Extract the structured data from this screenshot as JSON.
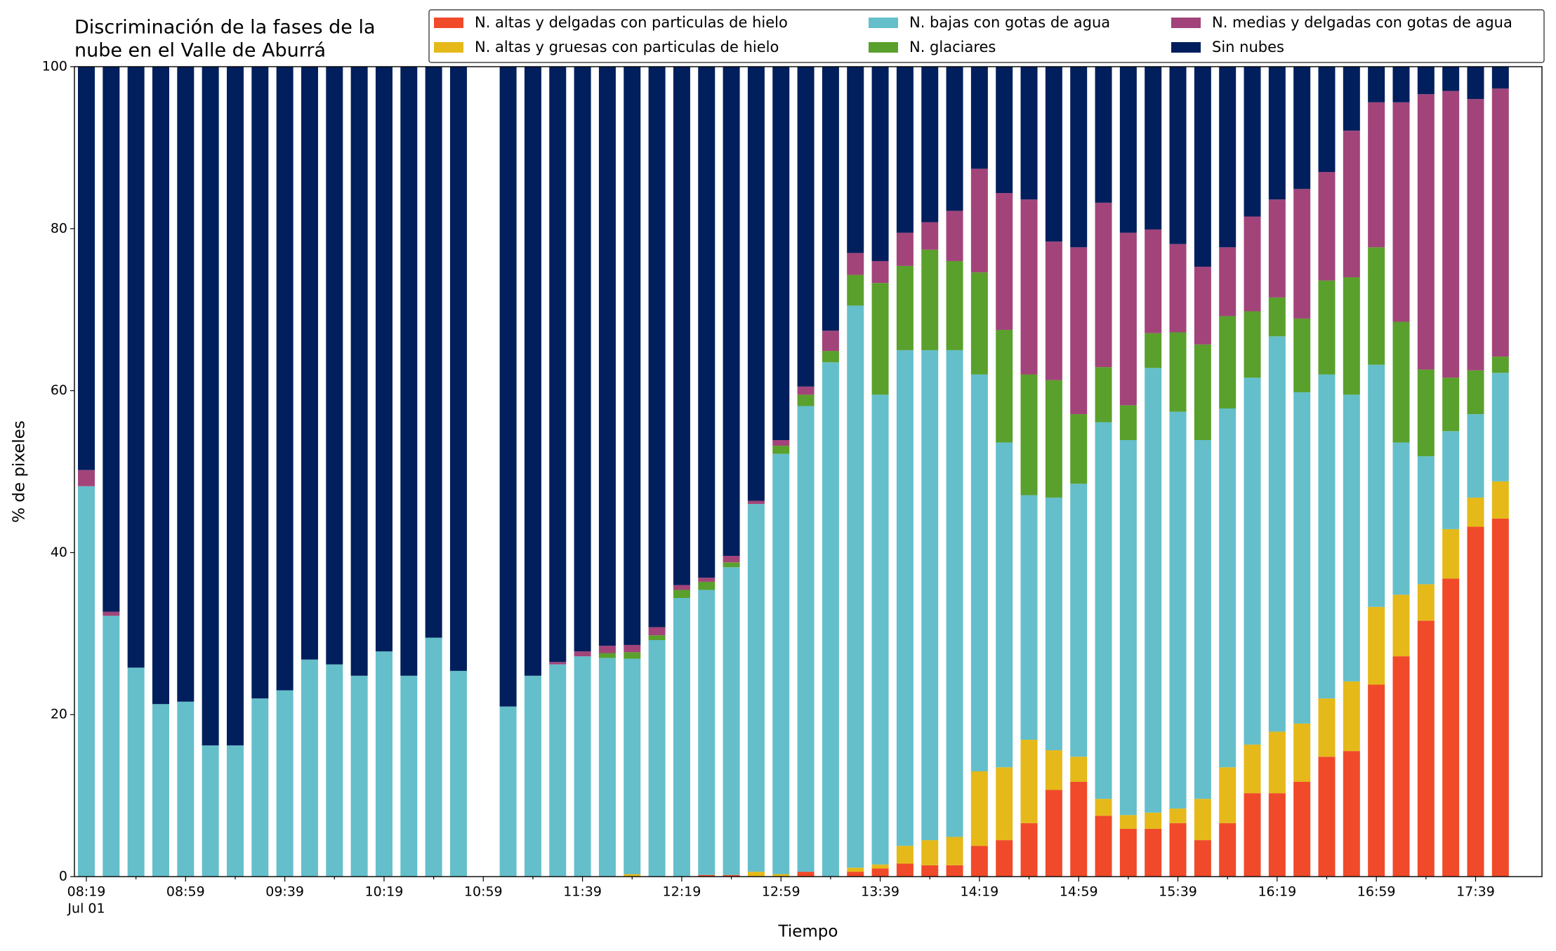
{
  "chart_data": {
    "type": "stacked_bar",
    "title": [
      "Discriminación de la fases de la",
      "nube en el Valle de Aburrá"
    ],
    "xlabel": "Tiempo",
    "ylabel": "% de pixeles",
    "x_sublabel": "Jul 01",
    "categories": [
      "08:19",
      null,
      null,
      null,
      "08:59",
      null,
      null,
      null,
      "09:39",
      null,
      null,
      null,
      "10:19",
      null,
      null,
      null,
      "10:59",
      null,
      null,
      null,
      "11:39",
      null,
      null,
      null,
      "12:19",
      null,
      null,
      null,
      "12:59",
      null,
      null,
      null,
      "13:39",
      null,
      null,
      null,
      "14:19",
      null,
      null,
      null,
      "14:59",
      null,
      null,
      null,
      "15:39",
      null,
      null,
      null,
      "16:19",
      null,
      null,
      null,
      "16:59",
      null,
      null,
      null,
      "17:39",
      null
    ],
    "ylim": [
      0,
      100
    ],
    "yticks": [
      0,
      20,
      40,
      60,
      80,
      100
    ],
    "legend": "top right",
    "series": [
      {
        "name": "N. altas y delgadas con particulas de hielo",
        "color": "#f04a2a",
        "values": [
          0,
          0,
          0,
          0,
          0,
          0,
          0,
          0,
          0,
          0,
          0,
          0,
          0,
          0,
          0,
          0,
          null,
          0,
          0,
          0,
          0,
          0,
          0,
          0,
          0,
          0.2,
          0.2,
          0,
          0,
          0.6,
          0,
          0.6,
          1.0,
          1.6,
          1.4,
          1.4,
          3.8,
          4.5,
          6.6,
          10.7,
          11.7,
          7.5,
          5.9,
          5.9,
          6.6,
          4.5,
          6.6,
          10.3,
          10.3,
          11.7,
          14.8,
          15.5,
          23.7,
          27.2,
          31.6,
          36.8,
          43.2,
          44.2
        ]
      },
      {
        "name": "N. altas y gruesas con particulas de hielo",
        "color": "#e5b919",
        "values": [
          0,
          0,
          0,
          0,
          0,
          0,
          0,
          0,
          0,
          0,
          0,
          0,
          0,
          0,
          0,
          0,
          null,
          0,
          0,
          0,
          0,
          0,
          0.3,
          0,
          0,
          0,
          0,
          0.6,
          0.3,
          0,
          0,
          0.5,
          0.5,
          2.2,
          3.1,
          3.5,
          9.2,
          9.0,
          10.3,
          4.9,
          3.1,
          2.1,
          1.7,
          2.0,
          1.8,
          5.1,
          6.9,
          6.0,
          7.6,
          7.2,
          7.2,
          8.6,
          9.6,
          7.6,
          4.5,
          6.1,
          3.6,
          4.6
        ]
      },
      {
        "name": "N. bajas con gotas de agua",
        "color": "#64bfcb",
        "values": [
          48.2,
          32.2,
          25.8,
          21.3,
          21.6,
          16.2,
          16.2,
          22.0,
          23.0,
          26.8,
          26.2,
          24.8,
          27.8,
          24.8,
          29.5,
          25.4,
          null,
          21.0,
          24.8,
          26.2,
          27.2,
          27.0,
          26.6,
          29.2,
          34.4,
          35.2,
          38.0,
          45.4,
          51.9,
          57.5,
          63.5,
          69.4,
          58.0,
          61.2,
          60.5,
          60.1,
          49.0,
          40.1,
          30.2,
          31.2,
          33.7,
          46.5,
          46.3,
          54.9,
          49.0,
          44.3,
          44.3,
          45.3,
          48.8,
          40.9,
          40.0,
          35.4,
          29.9,
          18.8,
          15.8,
          12.1,
          10.3,
          13.4
        ]
      },
      {
        "name": "N. glaciares",
        "color": "#5aa02c",
        "values": [
          0,
          0,
          0,
          0,
          0,
          0,
          0,
          0,
          0,
          0,
          0,
          0,
          0,
          0,
          0,
          0,
          null,
          0,
          0,
          0,
          0,
          0.6,
          0.8,
          0.6,
          1.0,
          1.0,
          0.6,
          0,
          1.0,
          1.4,
          1.4,
          3.8,
          13.8,
          10.4,
          12.4,
          11.0,
          12.6,
          13.9,
          14.9,
          14.5,
          8.6,
          6.8,
          4.3,
          4.3,
          9.8,
          11.8,
          11.4,
          8.2,
          4.8,
          9.1,
          11.6,
          14.5,
          14.5,
          14.9,
          10.7,
          6.6,
          5.4,
          2.0
        ]
      },
      {
        "name": "N. medias y delgadas con gotas de agua",
        "color": "#a2447a",
        "values": [
          2.0,
          0.5,
          0,
          0,
          0,
          0,
          0,
          0,
          0,
          0,
          0,
          0,
          0,
          0,
          0,
          0,
          null,
          0,
          0,
          0.3,
          0.6,
          0.9,
          0.9,
          1.0,
          0.6,
          0.5,
          0.8,
          0.4,
          0.7,
          1.0,
          2.5,
          2.7,
          2.7,
          4.1,
          3.4,
          6.2,
          12.8,
          16.9,
          21.6,
          17.1,
          20.6,
          20.3,
          21.3,
          12.8,
          10.9,
          9.6,
          8.5,
          11.7,
          12.1,
          16.0,
          13.4,
          18.1,
          17.9,
          27.1,
          34.0,
          35.4,
          33.5,
          33.1
        ]
      },
      {
        "name": "Sin nubes",
        "color": "#001f5c",
        "values": [
          49.8,
          67.3,
          74.2,
          78.7,
          78.4,
          83.8,
          83.8,
          78.0,
          77.0,
          73.2,
          73.8,
          75.2,
          72.2,
          75.2,
          70.5,
          74.6,
          null,
          79.0,
          75.2,
          73.5,
          72.2,
          71.5,
          71.4,
          69.2,
          64.0,
          63.1,
          60.4,
          53.6,
          46.1,
          39.5,
          32.6,
          23.0,
          24.0,
          20.5,
          19.2,
          17.8,
          12.6,
          15.6,
          16.4,
          21.6,
          22.3,
          16.8,
          20.5,
          20.1,
          21.9,
          24.7,
          22.3,
          18.5,
          16.4,
          15.1,
          13.0,
          7.9,
          4.4,
          4.4,
          3.4,
          3.0,
          4.0,
          2.7
        ]
      }
    ]
  }
}
